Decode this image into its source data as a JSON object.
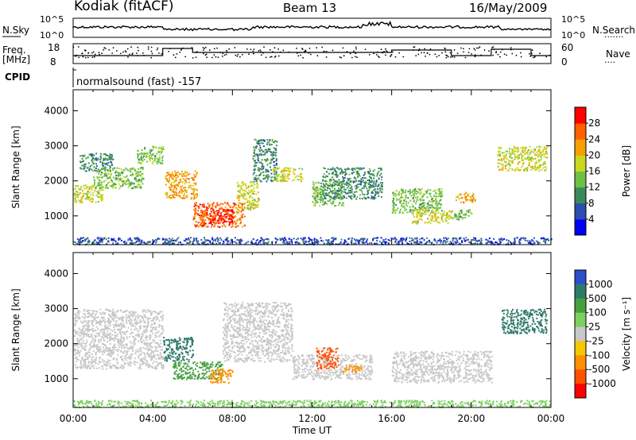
{
  "header": {
    "station": "Kodiak (fitACF)",
    "beam": "Beam 13",
    "date": "16/May/2009"
  },
  "sky_panel": {
    "left_label": "N.Sky",
    "right_label": "N.Search",
    "left_ticks": [
      "10^5",
      "10^0"
    ],
    "right_ticks": [
      "10^5",
      "10^0"
    ]
  },
  "freq_panel": {
    "left_label_1": "Freq.",
    "left_label_2": "[MHz]",
    "right_label": "Nave",
    "left_ticks": [
      18,
      8
    ],
    "right_ticks": [
      60,
      0
    ],
    "cpid_label": "CPID",
    "mode_text": "normalsound (fast) -157"
  },
  "time_axis": {
    "label": "Time UT",
    "ticks": [
      "00:00",
      "04:00",
      "08:00",
      "12:00",
      "16:00",
      "20:00",
      "00:00"
    ]
  },
  "chart_data": [
    {
      "type": "heatmap",
      "quantity": "power",
      "ylabel": "Slant Range [km]",
      "y_ticks": [
        1000,
        2000,
        3000,
        4000
      ],
      "ylim": [
        180,
        4600
      ],
      "xlim": [
        0,
        24
      ],
      "colorbar_label": "Power [dB]",
      "colorbar_ticks": [
        4,
        8,
        12,
        16,
        20,
        24,
        28
      ],
      "colorbar_colors": [
        "#0000ff",
        "#2c4fb0",
        "#3b8a5a",
        "#6ec046",
        "#c8d81e",
        "#f5a000",
        "#ff6000",
        "#ff0000"
      ],
      "echo_regions": [
        {
          "t0": 0.0,
          "t1": 1.5,
          "r0": 1400,
          "r1": 1900,
          "level": 16
        },
        {
          "t0": 0.3,
          "t1": 2.0,
          "r0": 2300,
          "r1": 2800,
          "level": 8
        },
        {
          "t0": 1.0,
          "t1": 3.5,
          "r0": 1800,
          "r1": 2400,
          "level": 12
        },
        {
          "t0": 3.2,
          "t1": 4.5,
          "r0": 2500,
          "r1": 3000,
          "level": 12
        },
        {
          "t0": 4.6,
          "t1": 6.2,
          "r0": 1500,
          "r1": 2300,
          "level": 20
        },
        {
          "t0": 6.0,
          "t1": 8.6,
          "r0": 700,
          "r1": 1400,
          "level": 24
        },
        {
          "t0": 6.8,
          "t1": 8.0,
          "r0": 800,
          "r1": 1200,
          "level": 28
        },
        {
          "t0": 8.2,
          "t1": 9.3,
          "r0": 1200,
          "r1": 2000,
          "level": 16
        },
        {
          "t0": 9.0,
          "t1": 10.2,
          "r0": 2000,
          "r1": 3200,
          "level": 8
        },
        {
          "t0": 10.0,
          "t1": 11.5,
          "r0": 2000,
          "r1": 2400,
          "level": 16
        },
        {
          "t0": 12.0,
          "t1": 13.6,
          "r0": 1300,
          "r1": 2000,
          "level": 12
        },
        {
          "t0": 12.5,
          "t1": 15.5,
          "r0": 1500,
          "r1": 2400,
          "level": 8
        },
        {
          "t0": 16.0,
          "t1": 18.5,
          "r0": 1100,
          "r1": 1800,
          "level": 12
        },
        {
          "t0": 17.0,
          "t1": 19.0,
          "r0": 800,
          "r1": 1200,
          "level": 16
        },
        {
          "t0": 19.2,
          "t1": 20.2,
          "r0": 1400,
          "r1": 1700,
          "level": 20
        },
        {
          "t0": 19.0,
          "t1": 20.0,
          "r0": 900,
          "r1": 1200,
          "level": 12
        },
        {
          "t0": 21.3,
          "t1": 23.8,
          "r0": 2300,
          "r1": 3000,
          "level": 16
        },
        {
          "t0": 0.0,
          "t1": 24.0,
          "r0": 200,
          "r1": 400,
          "level": 4
        }
      ]
    },
    {
      "type": "heatmap",
      "quantity": "velocity",
      "ylabel": "Slant Range [km]",
      "y_ticks": [
        1000,
        2000,
        3000,
        4000
      ],
      "ylim": [
        180,
        4600
      ],
      "xlim": [
        0,
        24
      ],
      "colorbar_label": "Velocity [m s⁻¹]",
      "colorbar_ticks": [
        1000,
        500,
        100,
        25,
        -25,
        -100,
        -500,
        -1000
      ],
      "colorbar_colors": [
        "#2a4fc8",
        "#2e7a68",
        "#46a040",
        "#7cd060",
        "#c8c8c8",
        "#f5c800",
        "#ff9000",
        "#ff5000",
        "#ff0000"
      ],
      "echo_regions": [
        {
          "t0": 0.0,
          "t1": 4.5,
          "r0": 1300,
          "r1": 3000,
          "v": 0
        },
        {
          "t0": 4.5,
          "t1": 6.0,
          "r0": 1500,
          "r1": 2200,
          "v": 300
        },
        {
          "t0": 5.0,
          "t1": 7.5,
          "r0": 1000,
          "r1": 1500,
          "v": 80
        },
        {
          "t0": 6.8,
          "t1": 8.0,
          "r0": 900,
          "r1": 1300,
          "v": -80
        },
        {
          "t0": 7.5,
          "t1": 11.0,
          "r0": 1500,
          "r1": 3200,
          "v": 0
        },
        {
          "t0": 11.0,
          "t1": 15.0,
          "r0": 1000,
          "r1": 1700,
          "v": 0
        },
        {
          "t0": 12.2,
          "t1": 13.3,
          "r0": 1300,
          "r1": 1900,
          "v": -300
        },
        {
          "t0": 13.5,
          "t1": 14.5,
          "r0": 1200,
          "r1": 1400,
          "v": -80
        },
        {
          "t0": 16.0,
          "t1": 21.0,
          "r0": 900,
          "r1": 1800,
          "v": 0
        },
        {
          "t0": 21.5,
          "t1": 23.8,
          "r0": 2300,
          "r1": 3000,
          "v": 300
        },
        {
          "t0": 0.0,
          "t1": 24.0,
          "r0": 200,
          "r1": 400,
          "v": 50
        }
      ]
    }
  ],
  "style": {
    "axis_color": "#000000"
  }
}
